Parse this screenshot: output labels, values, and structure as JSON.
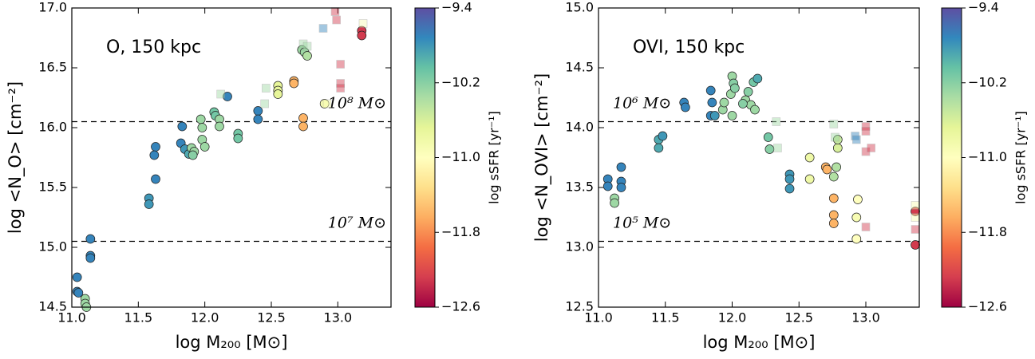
{
  "chart_data": [
    {
      "type": "scatter",
      "title": "O, 150 kpc",
      "xlabel": "log M₂₀₀ [M⊙]",
      "ylabel": "log <N_O> [cm⁻²]",
      "xlim": [
        11.0,
        13.4
      ],
      "ylim": [
        14.5,
        17.0
      ],
      "xticks": [
        {
          "value": 11.0,
          "label": "11.0"
        },
        {
          "value": 11.5,
          "label": "11.5"
        },
        {
          "value": 12.0,
          "label": "12.0"
        },
        {
          "value": 12.5,
          "label": "12.5"
        },
        {
          "value": 13.0,
          "label": "13.0"
        }
      ],
      "yticks": [
        {
          "value": 14.5,
          "label": "14.5"
        },
        {
          "value": 15.0,
          "label": "15.0"
        },
        {
          "value": 15.5,
          "label": "15.5"
        },
        {
          "value": 16.0,
          "label": "16.0"
        },
        {
          "value": 16.5,
          "label": "16.5"
        },
        {
          "value": 17.0,
          "label": "17.0"
        }
      ],
      "hlines": [
        {
          "value": 16.05,
          "label": "10⁸ M⊙"
        },
        {
          "value": 15.05,
          "label": "10⁷ M⊙"
        }
      ],
      "series": [
        {
          "marker": "circle",
          "x": [
            11.04,
            11.04,
            11.05,
            11.1,
            11.1,
            11.11,
            11.14,
            11.14,
            11.14,
            11.58,
            11.58,
            11.63,
            11.63,
            11.62,
            11.83,
            11.82,
            11.85,
            11.88,
            11.9,
            11.92,
            11.91,
            11.97,
            11.98,
            11.98,
            12.0,
            12.07,
            12.08,
            12.11,
            12.11,
            12.17,
            12.25,
            12.25,
            12.4,
            12.4,
            12.55,
            12.55,
            12.55,
            12.67,
            12.67,
            12.73,
            12.75,
            12.77,
            12.74,
            12.74,
            12.9,
            13.18,
            13.18
          ],
          "y": [
            14.75,
            14.63,
            14.62,
            14.57,
            14.53,
            14.5,
            15.07,
            14.93,
            14.91,
            15.41,
            15.36,
            15.57,
            15.84,
            15.77,
            16.01,
            15.87,
            15.82,
            15.78,
            15.83,
            15.8,
            15.77,
            16.07,
            16.0,
            15.9,
            15.84,
            16.13,
            16.1,
            16.07,
            16.01,
            16.26,
            15.95,
            15.91,
            16.14,
            16.07,
            16.35,
            16.31,
            16.28,
            16.39,
            16.37,
            16.65,
            16.63,
            16.6,
            16.08,
            16.01,
            16.2,
            16.81,
            16.77
          ],
          "c": [
            -9.7,
            -9.7,
            -9.7,
            -10.3,
            -10.3,
            -10.3,
            -9.7,
            -9.7,
            -9.7,
            -9.8,
            -9.8,
            -9.7,
            -9.7,
            -9.7,
            -9.7,
            -9.7,
            -9.8,
            -9.9,
            -10.3,
            -10.3,
            -10.2,
            -10.3,
            -10.3,
            -10.3,
            -10.3,
            -10.1,
            -10.1,
            -10.3,
            -10.3,
            -9.7,
            -10.1,
            -10.1,
            -9.7,
            -9.7,
            -10.7,
            -10.7,
            -10.7,
            -11.6,
            -11.6,
            -10.3,
            -10.3,
            -10.4,
            -11.6,
            -11.6,
            -10.9,
            -12.3,
            -12.3
          ]
        },
        {
          "marker": "square",
          "opacity": 0.45,
          "x": [
            12.12,
            12.45,
            12.46,
            12.74,
            12.77,
            12.89,
            12.98,
            12.99,
            13.02,
            13.02,
            13.02,
            13.19,
            12.92
          ],
          "y": [
            16.28,
            16.2,
            16.33,
            16.7,
            16.68,
            16.83,
            16.97,
            16.9,
            16.53,
            16.37,
            16.33,
            16.87,
            16.2
          ],
          "c": [
            -10.3,
            -10.3,
            -10.3,
            -10.3,
            -10.3,
            -9.7,
            -12.3,
            -12.3,
            -12.3,
            -12.3,
            -12.3,
            -10.9,
            -10.9
          ]
        }
      ],
      "colorbar": {
        "label": "log sSFR [yr⁻¹]",
        "lim": [
          -12.6,
          -9.4
        ],
        "ticks": [
          {
            "value": -9.4,
            "label": "−9.4"
          },
          {
            "value": -10.2,
            "label": "−10.2"
          },
          {
            "value": -11.0,
            "label": "−11.0"
          },
          {
            "value": -11.8,
            "label": "−11.8"
          },
          {
            "value": -12.6,
            "label": "−12.6"
          }
        ],
        "colors": [
          "#9e0142",
          "#d53e4f",
          "#f46d43",
          "#fdae61",
          "#fee08b",
          "#ffffbf",
          "#e6f598",
          "#abdda4",
          "#66c2a5",
          "#3288bd",
          "#5e4fa2"
        ]
      }
    },
    {
      "type": "scatter",
      "title": "OVI, 150 kpc",
      "xlabel": "log M₂₀₀ [M⊙]",
      "ylabel": "log <N_OVI> [cm⁻²]",
      "xlim": [
        11.0,
        13.4
      ],
      "ylim": [
        12.5,
        15.0
      ],
      "xticks": [
        {
          "value": 11.0,
          "label": "11.0"
        },
        {
          "value": 11.5,
          "label": "11.5"
        },
        {
          "value": 12.0,
          "label": "12.0"
        },
        {
          "value": 12.5,
          "label": "12.5"
        },
        {
          "value": 13.0,
          "label": "13.0"
        }
      ],
      "yticks": [
        {
          "value": 12.5,
          "label": "12.5"
        },
        {
          "value": 13.0,
          "label": "13.0"
        },
        {
          "value": 13.5,
          "label": "13.5"
        },
        {
          "value": 14.0,
          "label": "14.0"
        },
        {
          "value": 14.5,
          "label": "14.5"
        },
        {
          "value": 15.0,
          "label": "15.0"
        }
      ],
      "hlines": [
        {
          "value": 14.05,
          "label": "10⁶ M⊙"
        },
        {
          "value": 13.05,
          "label": "10⁵ M⊙"
        }
      ],
      "series": [
        {
          "marker": "circle",
          "x": [
            11.07,
            11.07,
            11.12,
            11.12,
            11.17,
            11.17,
            11.17,
            11.45,
            11.45,
            11.48,
            11.64,
            11.65,
            11.84,
            11.85,
            11.84,
            11.87,
            11.93,
            11.94,
            11.99,
            12.0,
            12.01,
            12.0,
            12.1,
            12.12,
            12.16,
            12.19,
            12.14,
            12.17,
            12.02,
            12.08,
            12.27,
            12.28,
            12.43,
            12.43,
            12.43,
            12.58,
            12.58,
            12.7,
            12.71,
            12.76,
            12.78,
            12.79,
            12.79,
            12.76,
            12.76,
            12.76,
            12.94,
            12.93,
            12.93,
            13.37,
            13.37
          ],
          "y": [
            13.57,
            13.51,
            13.41,
            13.37,
            13.67,
            13.55,
            13.5,
            13.9,
            13.83,
            13.93,
            14.21,
            14.17,
            14.31,
            14.21,
            14.1,
            14.1,
            14.15,
            14.21,
            14.28,
            14.43,
            14.37,
            14.1,
            14.23,
            14.3,
            14.38,
            14.41,
            14.19,
            14.15,
            14.33,
            14.2,
            13.92,
            13.82,
            13.61,
            13.57,
            13.49,
            13.75,
            13.57,
            13.67,
            13.65,
            13.59,
            13.67,
            13.83,
            13.9,
            13.41,
            13.27,
            13.2,
            13.4,
            13.25,
            13.07,
            13.3,
            13.02
          ],
          "c": [
            -9.7,
            -9.7,
            -10.3,
            -10.3,
            -9.7,
            -9.7,
            -9.7,
            -9.9,
            -9.9,
            -9.8,
            -9.7,
            -9.7,
            -9.7,
            -9.7,
            -9.7,
            -9.8,
            -10.3,
            -10.3,
            -10.3,
            -10.3,
            -10.2,
            -10.3,
            -10.3,
            -10.2,
            -10.1,
            -9.9,
            -10.3,
            -10.3,
            -10.2,
            -10.2,
            -10.1,
            -10.2,
            -9.8,
            -9.8,
            -9.8,
            -10.8,
            -10.8,
            -11.6,
            -11.6,
            -10.4,
            -10.4,
            -10.6,
            -10.5,
            -11.6,
            -11.6,
            -11.6,
            -11.0,
            -10.9,
            -11.0,
            -12.3,
            -12.3
          ]
        },
        {
          "marker": "square",
          "opacity": 0.45,
          "x": [
            12.33,
            12.34,
            12.76,
            12.77,
            12.92,
            12.93,
            13.0,
            13.0,
            13.0,
            13.04,
            13.37,
            13.37,
            13.37,
            13.0
          ],
          "y": [
            14.05,
            13.83,
            14.03,
            13.92,
            13.93,
            13.9,
            14.01,
            13.97,
            13.8,
            13.83,
            13.35,
            13.25,
            13.15,
            13.17
          ],
          "c": [
            -10.3,
            -10.3,
            -10.3,
            -10.3,
            -9.7,
            -9.7,
            -12.3,
            -12.3,
            -12.3,
            -12.3,
            -10.9,
            -10.9,
            -12.3,
            -12.3
          ]
        }
      ],
      "colorbar": {
        "label": "log sSFR [yr⁻¹]",
        "lim": [
          -12.6,
          -9.4
        ],
        "ticks": [
          {
            "value": -9.4,
            "label": "−9.4"
          },
          {
            "value": -10.2,
            "label": "−10.2"
          },
          {
            "value": -11.0,
            "label": "−11.0"
          },
          {
            "value": -11.8,
            "label": "−11.8"
          },
          {
            "value": -12.6,
            "label": "−12.6"
          }
        ],
        "colors": [
          "#9e0142",
          "#d53e4f",
          "#f46d43",
          "#fdae61",
          "#fee08b",
          "#ffffbf",
          "#e6f598",
          "#abdda4",
          "#66c2a5",
          "#3288bd",
          "#5e4fa2"
        ]
      }
    }
  ]
}
